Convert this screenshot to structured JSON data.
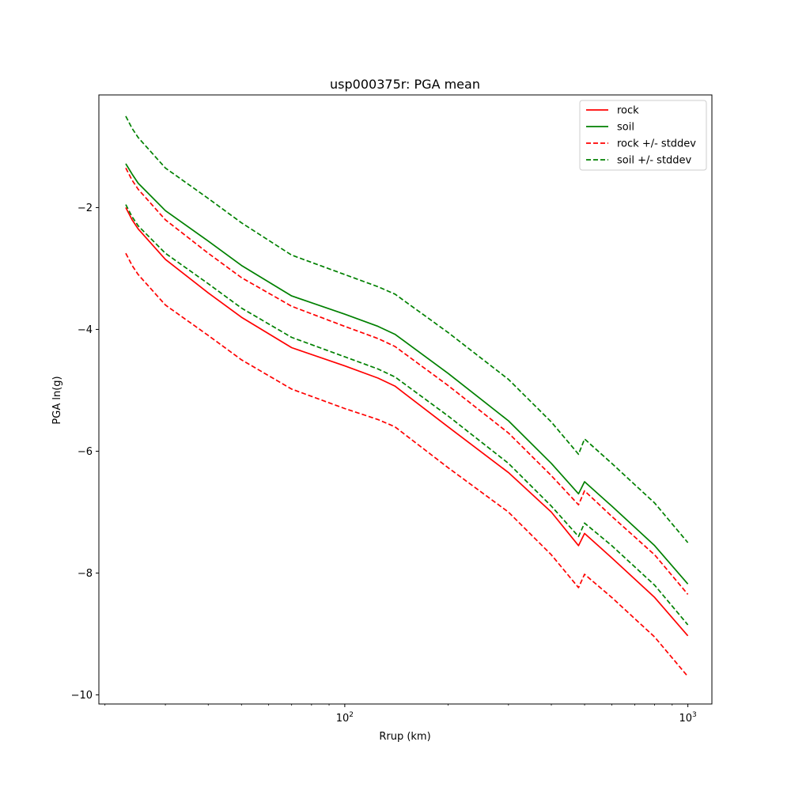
{
  "chart_data": {
    "type": "line",
    "title": "usp000375r: PGA mean",
    "xlabel": "Rrup (km)",
    "ylabel": "PGA ln(g)",
    "xscale": "log",
    "xlim": [
      19.2,
      1175
    ],
    "ylim": [
      -10.15,
      -0.15
    ],
    "x_ticks": [
      {
        "value": 100,
        "base": "10",
        "exp": "2"
      },
      {
        "value": 1000,
        "base": "10",
        "exp": "3"
      }
    ],
    "y_ticks": [
      {
        "value": -10,
        "label": "−10"
      },
      {
        "value": -8,
        "label": "−8"
      },
      {
        "value": -6,
        "label": "−6"
      },
      {
        "value": -4,
        "label": "−4"
      },
      {
        "value": -2,
        "label": "−2"
      }
    ],
    "grid": false,
    "legend_position": "top-right",
    "series": [
      {
        "name": "rock",
        "color": "#ff0000",
        "style": "solid",
        "x": [
          23,
          24,
          25,
          30,
          40,
          50,
          70,
          100,
          125,
          140,
          200,
          300,
          400,
          480,
          500,
          600,
          800,
          1000
        ],
        "y": [
          -2.0,
          -2.2,
          -2.35,
          -2.85,
          -3.4,
          -3.8,
          -4.3,
          -4.6,
          -4.8,
          -4.93,
          -5.6,
          -6.35,
          -7.0,
          -7.55,
          -7.35,
          -7.75,
          -8.4,
          -9.03
        ]
      },
      {
        "name": "soil",
        "color": "#008000",
        "style": "solid",
        "x": [
          23,
          24,
          25,
          30,
          40,
          50,
          70,
          100,
          125,
          140,
          200,
          300,
          400,
          480,
          500,
          600,
          800,
          1000
        ],
        "y": [
          -1.28,
          -1.45,
          -1.6,
          -2.05,
          -2.55,
          -2.95,
          -3.45,
          -3.75,
          -3.95,
          -4.08,
          -4.72,
          -5.5,
          -6.2,
          -6.7,
          -6.5,
          -6.9,
          -7.55,
          -8.18
        ]
      },
      {
        "name": "rock +/- stddev",
        "color": "#ff0000",
        "style": "dashed",
        "x": [
          23,
          24,
          25,
          30,
          40,
          50,
          70,
          100,
          125,
          140,
          200,
          300,
          400,
          480,
          500,
          600,
          800,
          1000
        ],
        "y": [
          -1.35,
          -1.55,
          -1.7,
          -2.2,
          -2.75,
          -3.15,
          -3.62,
          -3.95,
          -4.15,
          -4.28,
          -4.92,
          -5.7,
          -6.4,
          -6.88,
          -6.65,
          -7.07,
          -7.7,
          -8.35
        ]
      },
      {
        "name": "",
        "color": "#ff0000",
        "style": "dashed",
        "x": [
          23,
          24,
          25,
          30,
          40,
          50,
          70,
          100,
          125,
          140,
          200,
          300,
          400,
          480,
          500,
          600,
          800,
          1000
        ],
        "y": [
          -2.75,
          -2.95,
          -3.1,
          -3.6,
          -4.1,
          -4.5,
          -4.98,
          -5.3,
          -5.48,
          -5.6,
          -6.27,
          -7.0,
          -7.7,
          -8.24,
          -8.02,
          -8.4,
          -9.05,
          -9.7
        ]
      },
      {
        "name": "soil +/- stddev",
        "color": "#008000",
        "style": "dashed",
        "x": [
          23,
          24,
          25,
          30,
          40,
          50,
          70,
          100,
          125,
          140,
          200,
          300,
          400,
          480,
          500,
          600,
          800,
          1000
        ],
        "y": [
          -0.5,
          -0.7,
          -0.85,
          -1.35,
          -1.85,
          -2.25,
          -2.78,
          -3.1,
          -3.3,
          -3.42,
          -4.05,
          -4.82,
          -5.52,
          -6.05,
          -5.8,
          -6.2,
          -6.85,
          -7.5
        ]
      },
      {
        "name": "",
        "color": "#008000",
        "style": "dashed",
        "x": [
          23,
          24,
          25,
          30,
          40,
          50,
          70,
          100,
          125,
          140,
          200,
          300,
          400,
          480,
          500,
          600,
          800,
          1000
        ],
        "y": [
          -1.95,
          -2.15,
          -2.3,
          -2.75,
          -3.25,
          -3.65,
          -4.13,
          -4.45,
          -4.65,
          -4.78,
          -5.42,
          -6.2,
          -6.9,
          -7.4,
          -7.18,
          -7.55,
          -8.2,
          -8.85
        ]
      }
    ],
    "legend": [
      {
        "label": "rock",
        "color": "#ff0000",
        "style": "solid"
      },
      {
        "label": "soil",
        "color": "#008000",
        "style": "solid"
      },
      {
        "label": "rock +/- stddev",
        "color": "#ff0000",
        "style": "dashed"
      },
      {
        "label": "soil +/- stddev",
        "color": "#008000",
        "style": "dashed"
      }
    ]
  }
}
